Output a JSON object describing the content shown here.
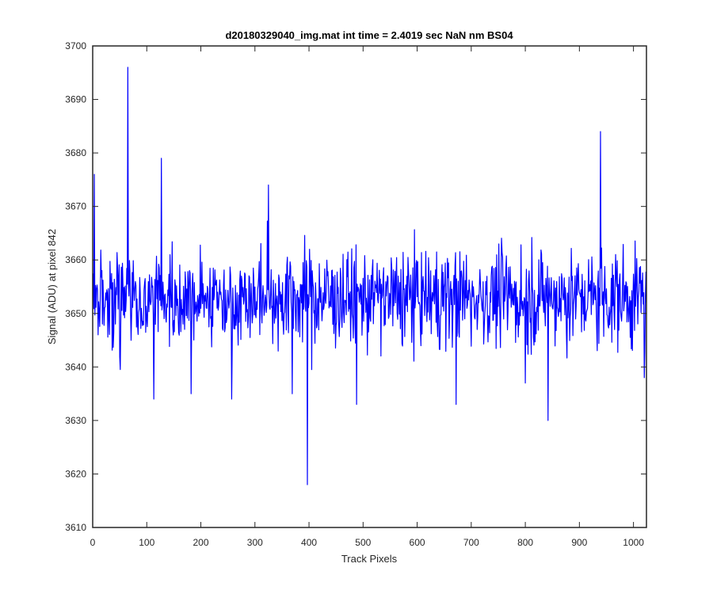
{
  "chart_data": {
    "type": "line",
    "title": "d20180329040_img.mat int time = 2.4019 sec  NaN nm BS04",
    "xlabel": "Track Pixels",
    "ylabel": "Signal (ADU) at pixel 842",
    "xlim": [
      0,
      1024
    ],
    "ylim": [
      3610,
      3700
    ],
    "xticks": [
      0,
      100,
      200,
      300,
      400,
      500,
      600,
      700,
      800,
      900,
      1000
    ],
    "yticks": [
      3610,
      3620,
      3630,
      3640,
      3650,
      3660,
      3670,
      3680,
      3690,
      3700
    ],
    "grid": false,
    "legend": "none",
    "line_color": "#0000ff",
    "series": [
      {
        "x_start": 1,
        "x_step": 1,
        "values_description_only_in_length": 1024,
        "baseline": 3653,
        "noise_amplitude": 6,
        "spikes": [
          {
            "x": 3,
            "y": 3676
          },
          {
            "x": 10,
            "y": 3646
          },
          {
            "x": 65,
            "y": 3696
          },
          {
            "x": 113,
            "y": 3634
          },
          {
            "x": 127,
            "y": 3679
          },
          {
            "x": 182,
            "y": 3635
          },
          {
            "x": 257,
            "y": 3634
          },
          {
            "x": 325,
            "y": 3674
          },
          {
            "x": 369,
            "y": 3635
          },
          {
            "x": 397,
            "y": 3618
          },
          {
            "x": 488,
            "y": 3633
          },
          {
            "x": 672,
            "y": 3633
          },
          {
            "x": 800,
            "y": 3637
          },
          {
            "x": 842,
            "y": 3630
          },
          {
            "x": 939,
            "y": 3684
          },
          {
            "x": 1020,
            "y": 3638
          }
        ]
      }
    ]
  }
}
